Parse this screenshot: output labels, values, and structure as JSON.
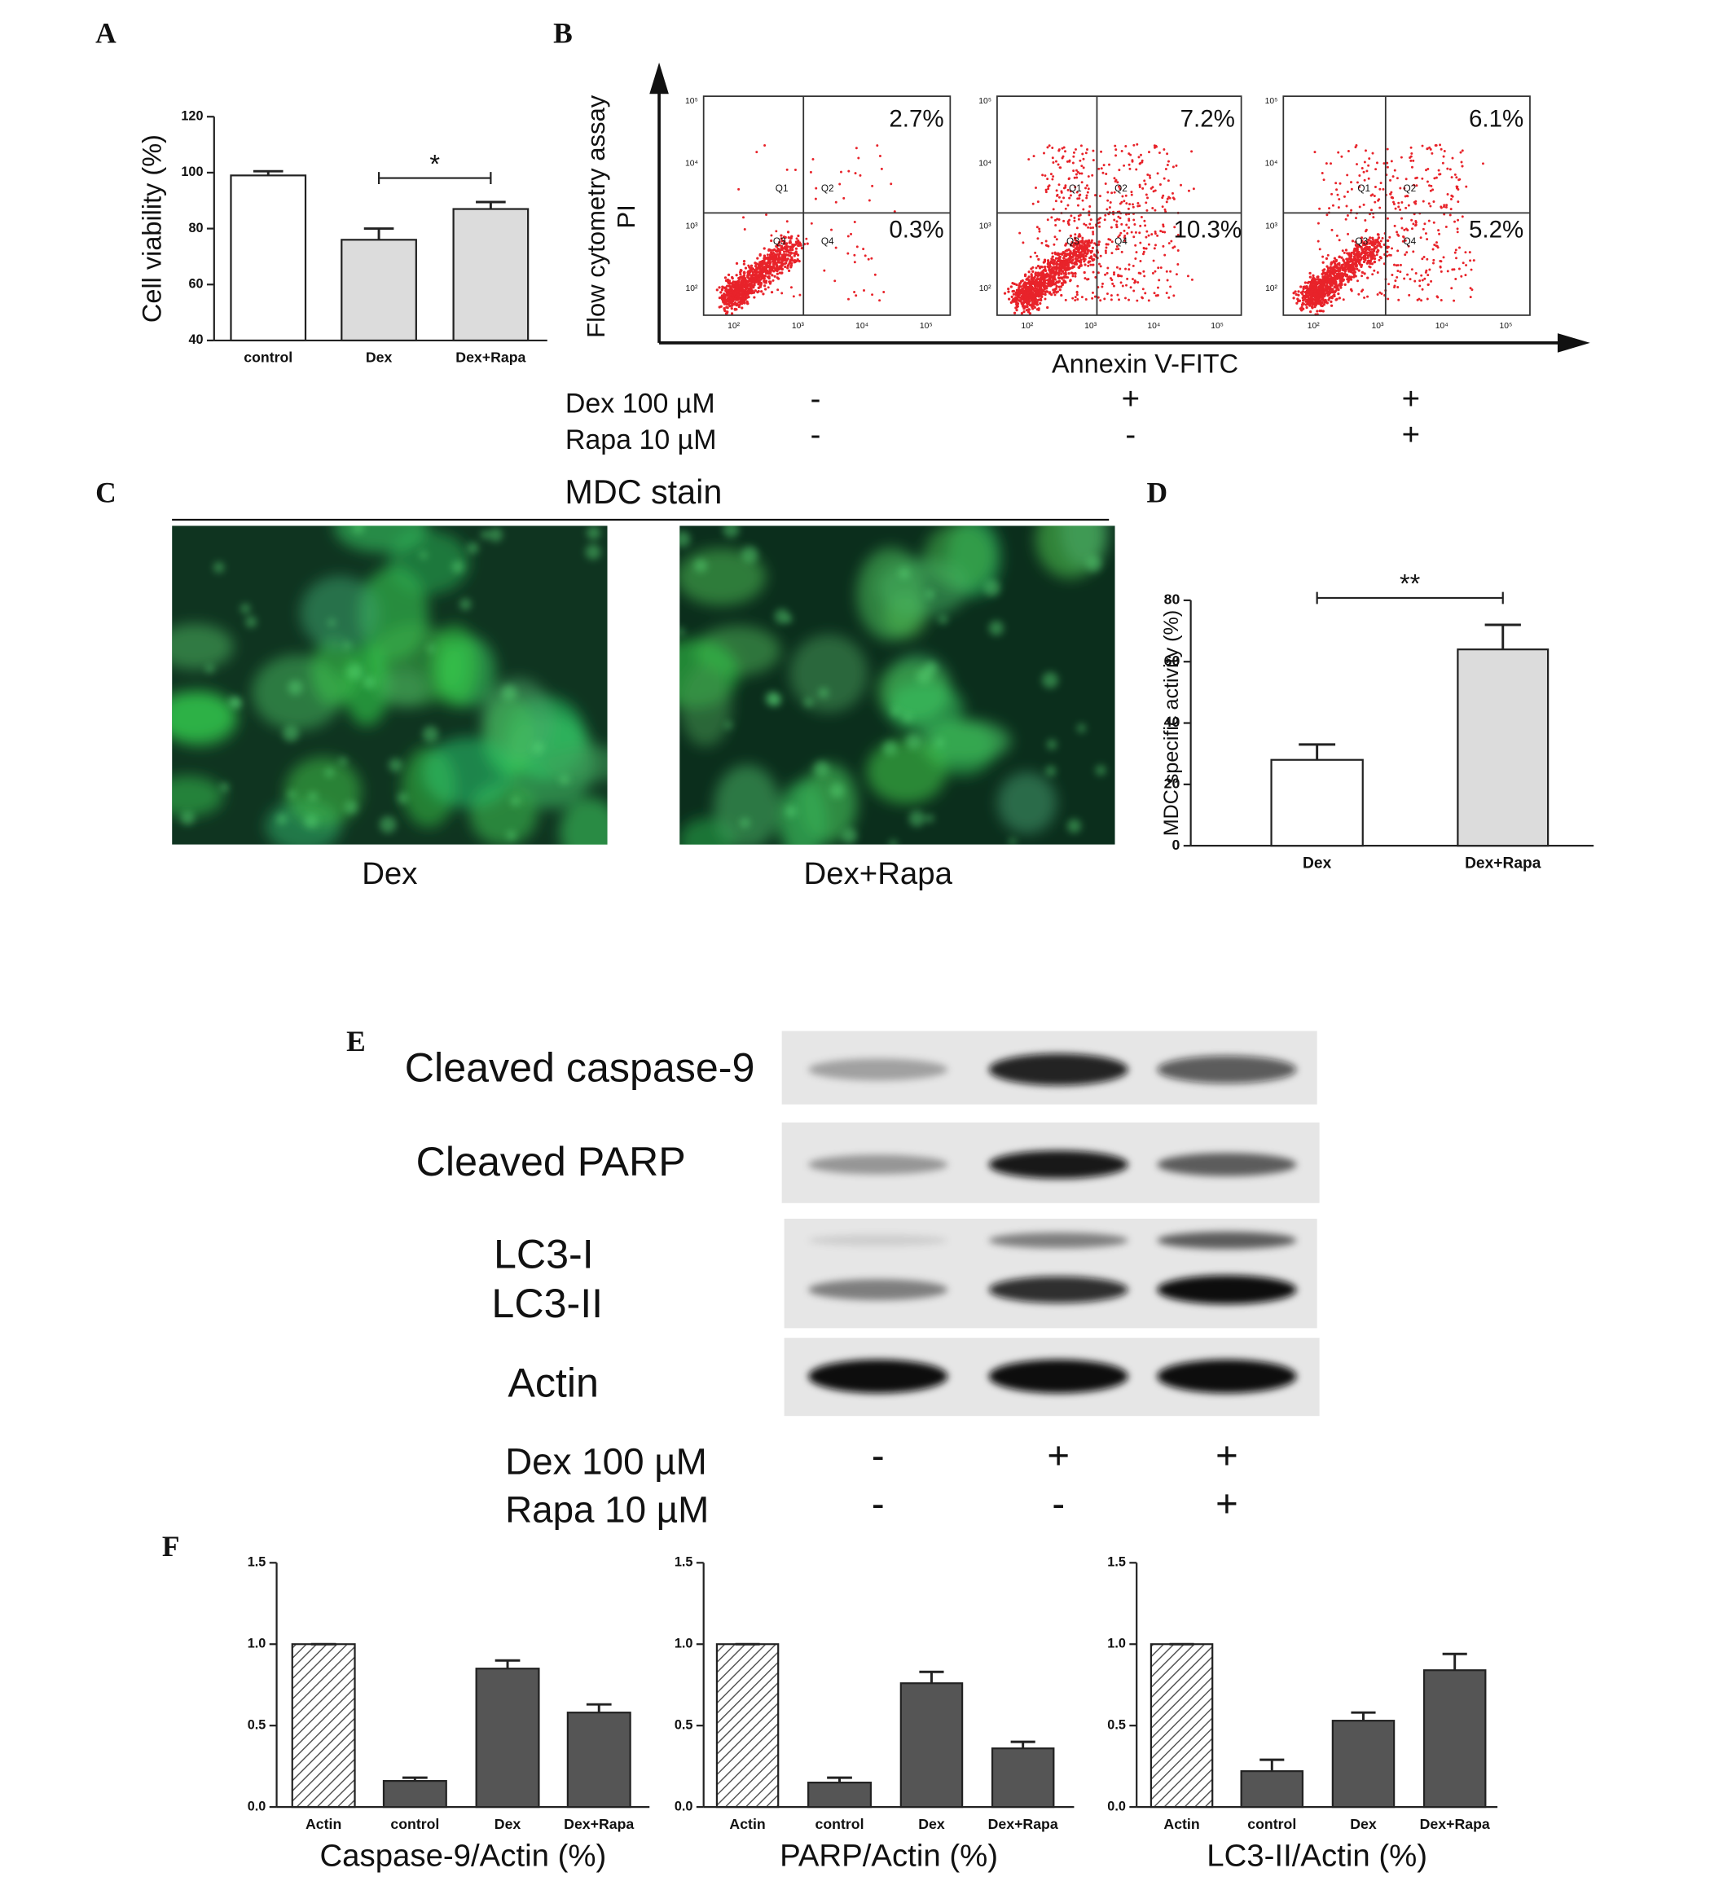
{
  "panel_labels": [
    "A",
    "B",
    "C",
    "D",
    "E",
    "F"
  ],
  "chart_data": [
    {
      "type": "bar",
      "categories": [
        "control",
        "Dex",
        "Dex+Rapa"
      ],
      "values": [
        99,
        76,
        87
      ],
      "errors": [
        1.5,
        4,
        2.5
      ],
      "colors": [
        "#ffffff",
        "#dcdcdc",
        "#dcdcdc"
      ],
      "hatch": [
        false,
        false,
        false
      ],
      "ylim": [
        40,
        120
      ],
      "yticks": [
        40,
        60,
        80,
        100,
        120
      ],
      "y_label": "Cell viability (%)",
      "significance": "*"
    },
    {
      "type": "bar",
      "categories": [
        "Dex",
        "Dex+Rapa"
      ],
      "values": [
        28,
        64
      ],
      "errors": [
        5,
        8
      ],
      "colors": [
        "#ffffff",
        "#dcdcdc"
      ],
      "hatch": [
        false,
        false
      ],
      "ylim": [
        0,
        80
      ],
      "yticks": [
        0,
        20,
        40,
        60,
        80
      ],
      "y_label": "MDC specific activity (%)",
      "significance": "**"
    },
    {
      "type": "bar",
      "categories": [
        "Actin",
        "control",
        "Dex",
        "Dex+Rapa"
      ],
      "values": [
        1.0,
        0.16,
        0.85,
        0.58
      ],
      "errors": [
        0,
        0.02,
        0.05,
        0.05
      ],
      "colors": [
        "#ffffff",
        "#555555",
        "#555555",
        "#555555"
      ],
      "hatch": [
        true,
        false,
        false,
        false
      ],
      "ylim": [
        0,
        1.5
      ],
      "yticks": [
        {
          "value": 0,
          "label": "0.0"
        },
        0.5,
        {
          "value": 1,
          "label": "1.0"
        },
        1.5
      ],
      "x_label": "Caspase-9/Actin (%)"
    },
    {
      "type": "bar",
      "categories": [
        "Actin",
        "control",
        "Dex",
        "Dex+Rapa"
      ],
      "values": [
        1.0,
        0.15,
        0.76,
        0.36
      ],
      "errors": [
        0,
        0.03,
        0.07,
        0.04
      ],
      "colors": [
        "#ffffff",
        "#555555",
        "#555555",
        "#555555"
      ],
      "hatch": [
        true,
        false,
        false,
        false
      ],
      "ylim": [
        0,
        1.5
      ],
      "yticks": [
        {
          "value": 0,
          "label": "0.0"
        },
        0.5,
        {
          "value": 1,
          "label": "1.0"
        },
        1.5
      ],
      "x_label": "PARP/Actin (%)"
    },
    {
      "type": "bar",
      "categories": [
        "Actin",
        "control",
        "Dex",
        "Dex+Rapa"
      ],
      "values": [
        1.0,
        0.22,
        0.53,
        0.84
      ],
      "errors": [
        0,
        0.07,
        0.05,
        0.1
      ],
      "colors": [
        "#ffffff",
        "#555555",
        "#555555",
        "#555555"
      ],
      "hatch": [
        true,
        false,
        false,
        false
      ],
      "ylim": [
        0,
        1.5
      ],
      "yticks": [
        {
          "value": 0,
          "label": "0.0"
        },
        0.5,
        {
          "value": 1,
          "label": "1.0"
        },
        1.5
      ],
      "x_label": "LC3-II/Actin (%)"
    }
  ],
  "flow": {
    "y_label_lines": [
      "Flow cytometry assay",
      "PI"
    ],
    "x_label": "Annexin V-FITC",
    "quadrants": [
      "Q1",
      "Q2",
      "Q3",
      "Q4"
    ],
    "axis_ticks": [
      "10²",
      "10³",
      "10⁴",
      "10⁵"
    ],
    "plots": [
      {
        "upper_right": "2.7%",
        "lower_right": "0.3%"
      },
      {
        "upper_right": "7.2%",
        "lower_right": "10.3%"
      },
      {
        "upper_right": "6.1%",
        "lower_right": "5.2%"
      }
    ],
    "treatments": [
      {
        "label": "Dex 100 µM",
        "marks": [
          "-",
          "+",
          "+"
        ]
      },
      {
        "label": "Rapa 10 µM",
        "marks": [
          "-",
          "-",
          "+"
        ]
      }
    ]
  },
  "mdc": {
    "title": "MDC stain",
    "images": [
      "Dex",
      "Dex+Rapa"
    ]
  },
  "blot": {
    "rows": [
      "Cleaved caspase-9",
      "Cleaved PARP",
      "LC3-I",
      "LC3-II",
      "Actin"
    ],
    "treatments": [
      {
        "label": "Dex 100 µM",
        "marks": [
          "-",
          "+",
          "+"
        ]
      },
      {
        "label": "Rapa 10 µM",
        "marks": [
          "-",
          "-",
          "+"
        ]
      }
    ]
  }
}
